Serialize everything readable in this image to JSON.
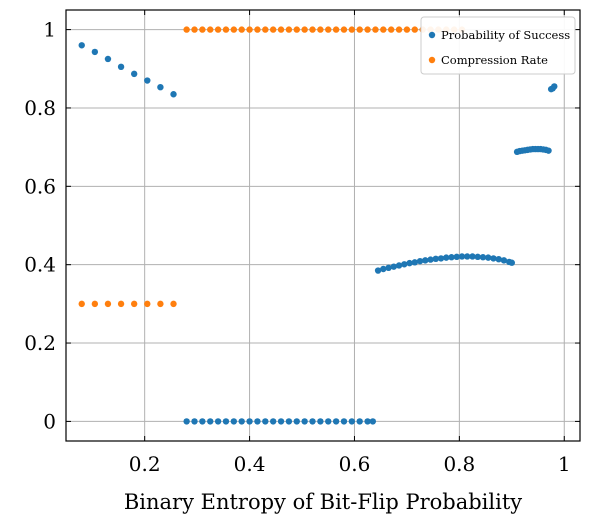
{
  "chart_data": {
    "type": "scatter",
    "xlabel": "Binary Entropy of Bit-Flip Probability",
    "ylabel": "",
    "xlim": [
      0.05,
      1.03
    ],
    "ylim": [
      -0.05,
      1.05
    ],
    "xticks": [
      0.2,
      0.4,
      0.6,
      0.8,
      1
    ],
    "xtick_labels": [
      "0.2",
      "0.4",
      "0.6",
      "0.8",
      "1"
    ],
    "yticks": [
      0,
      0.2,
      0.4,
      0.6,
      0.8,
      1
    ],
    "ytick_labels": [
      "0",
      "0.2",
      "0.4",
      "0.6",
      "0.8",
      "1"
    ],
    "grid": true,
    "legend_position": "top-right",
    "series": [
      {
        "name": "Probability of Success",
        "color": "#1f77b4",
        "points": [
          [
            0.08,
            0.96
          ],
          [
            0.105,
            0.943
          ],
          [
            0.13,
            0.925
          ],
          [
            0.155,
            0.905
          ],
          [
            0.18,
            0.887
          ],
          [
            0.205,
            0.87
          ],
          [
            0.23,
            0.853
          ],
          [
            0.255,
            0.835
          ],
          [
            0.28,
            0.0
          ],
          [
            0.295,
            0.0
          ],
          [
            0.31,
            0.0
          ],
          [
            0.325,
            0.0
          ],
          [
            0.34,
            0.0
          ],
          [
            0.355,
            0.0
          ],
          [
            0.37,
            0.0
          ],
          [
            0.385,
            0.0
          ],
          [
            0.4,
            0.0
          ],
          [
            0.415,
            0.0
          ],
          [
            0.43,
            0.0
          ],
          [
            0.445,
            0.0
          ],
          [
            0.46,
            0.0
          ],
          [
            0.475,
            0.0
          ],
          [
            0.49,
            0.0
          ],
          [
            0.505,
            0.0
          ],
          [
            0.52,
            0.0
          ],
          [
            0.535,
            0.0
          ],
          [
            0.55,
            0.0
          ],
          [
            0.565,
            0.0
          ],
          [
            0.58,
            0.0
          ],
          [
            0.595,
            0.0
          ],
          [
            0.61,
            0.0
          ],
          [
            0.625,
            0.0
          ],
          [
            0.635,
            0.0
          ],
          [
            0.645,
            0.385
          ],
          [
            0.655,
            0.389
          ],
          [
            0.665,
            0.392
          ],
          [
            0.675,
            0.395
          ],
          [
            0.685,
            0.398
          ],
          [
            0.695,
            0.401
          ],
          [
            0.705,
            0.404
          ],
          [
            0.715,
            0.406
          ],
          [
            0.725,
            0.409
          ],
          [
            0.735,
            0.411
          ],
          [
            0.745,
            0.413
          ],
          [
            0.755,
            0.415
          ],
          [
            0.765,
            0.416
          ],
          [
            0.775,
            0.418
          ],
          [
            0.785,
            0.419
          ],
          [
            0.795,
            0.42
          ],
          [
            0.805,
            0.421
          ],
          [
            0.815,
            0.421
          ],
          [
            0.825,
            0.421
          ],
          [
            0.835,
            0.42
          ],
          [
            0.845,
            0.419
          ],
          [
            0.855,
            0.418
          ],
          [
            0.865,
            0.416
          ],
          [
            0.875,
            0.414
          ],
          [
            0.885,
            0.411
          ],
          [
            0.895,
            0.407
          ],
          [
            0.9,
            0.405
          ],
          [
            0.91,
            0.688
          ],
          [
            0.915,
            0.69
          ],
          [
            0.92,
            0.691
          ],
          [
            0.925,
            0.692
          ],
          [
            0.93,
            0.693
          ],
          [
            0.935,
            0.694
          ],
          [
            0.94,
            0.695
          ],
          [
            0.945,
            0.695
          ],
          [
            0.95,
            0.695
          ],
          [
            0.955,
            0.695
          ],
          [
            0.96,
            0.694
          ],
          [
            0.965,
            0.693
          ],
          [
            0.97,
            0.691
          ],
          [
            0.975,
            0.848
          ],
          [
            0.978,
            0.85
          ],
          [
            0.981,
            0.855
          ]
        ]
      },
      {
        "name": "Compression Rate",
        "color": "#ff7f0e",
        "points": [
          [
            0.08,
            0.3
          ],
          [
            0.105,
            0.3
          ],
          [
            0.13,
            0.3
          ],
          [
            0.155,
            0.3
          ],
          [
            0.18,
            0.3
          ],
          [
            0.205,
            0.3
          ],
          [
            0.23,
            0.3
          ],
          [
            0.255,
            0.3
          ],
          [
            0.28,
            1.0
          ],
          [
            0.295,
            1.0
          ],
          [
            0.31,
            1.0
          ],
          [
            0.325,
            1.0
          ],
          [
            0.34,
            1.0
          ],
          [
            0.355,
            1.0
          ],
          [
            0.37,
            1.0
          ],
          [
            0.385,
            1.0
          ],
          [
            0.4,
            1.0
          ],
          [
            0.415,
            1.0
          ],
          [
            0.43,
            1.0
          ],
          [
            0.445,
            1.0
          ],
          [
            0.46,
            1.0
          ],
          [
            0.475,
            1.0
          ],
          [
            0.49,
            1.0
          ],
          [
            0.505,
            1.0
          ],
          [
            0.52,
            1.0
          ],
          [
            0.535,
            1.0
          ],
          [
            0.55,
            1.0
          ],
          [
            0.565,
            1.0
          ],
          [
            0.58,
            1.0
          ],
          [
            0.595,
            1.0
          ],
          [
            0.61,
            1.0
          ],
          [
            0.625,
            1.0
          ],
          [
            0.64,
            1.0
          ],
          [
            0.655,
            1.0
          ],
          [
            0.67,
            1.0
          ],
          [
            0.685,
            1.0
          ],
          [
            0.7,
            1.0
          ],
          [
            0.715,
            1.0
          ],
          [
            0.73,
            1.0
          ],
          [
            0.745,
            1.0
          ],
          [
            0.76,
            1.0
          ],
          [
            0.775,
            1.0
          ],
          [
            0.79,
            1.0
          ],
          [
            0.805,
            1.0
          ]
        ]
      }
    ]
  }
}
